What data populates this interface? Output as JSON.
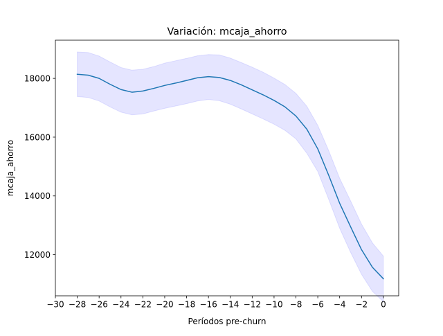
{
  "chart_data": {
    "type": "line",
    "title": "Variación: mcaja_ahorro",
    "xlabel": "Períodos pre-churn",
    "ylabel": "mcaja_ahorro",
    "xlim": [
      -30,
      1.4
    ],
    "ylim": [
      10600,
      19300
    ],
    "x_ticks": [
      -30,
      -28,
      -26,
      -24,
      -22,
      -20,
      -18,
      -16,
      -14,
      -12,
      -10,
      -8,
      -6,
      -4,
      -2,
      0
    ],
    "x_tick_labels": [
      "−30",
      "−28",
      "−26",
      "−24",
      "−22",
      "−20",
      "−18",
      "−16",
      "−14",
      "−12",
      "−10",
      "−8",
      "−6",
      "−4",
      "−2",
      "0"
    ],
    "y_ticks": [
      12000,
      14000,
      16000,
      18000
    ],
    "y_tick_labels": [
      "12000",
      "14000",
      "16000",
      "18000"
    ],
    "grid": false,
    "series": [
      {
        "color": "#1f77b4",
        "band_color": "#0000ff",
        "x": [
          -28,
          -27,
          -26,
          -25,
          -24,
          -23,
          -22,
          -21,
          -20,
          -19,
          -18,
          -17,
          -16,
          -15,
          -14,
          -13,
          -12,
          -11,
          -10,
          -9,
          -8,
          -7,
          -6,
          -5,
          -4,
          -3,
          -2,
          -1,
          0
        ],
        "values": [
          18140,
          18110,
          18000,
          17800,
          17620,
          17530,
          17570,
          17660,
          17760,
          17840,
          17930,
          18020,
          18060,
          18030,
          17930,
          17780,
          17610,
          17440,
          17250,
          17030,
          16720,
          16270,
          15600,
          14700,
          13750,
          12950,
          12170,
          11570,
          11180
        ],
        "upper": [
          18900,
          18880,
          18760,
          18560,
          18370,
          18280,
          18310,
          18400,
          18520,
          18600,
          18680,
          18770,
          18810,
          18800,
          18690,
          18540,
          18380,
          18210,
          18010,
          17790,
          17490,
          17050,
          16400,
          15540,
          14600,
          13830,
          13040,
          12400,
          11950
        ],
        "lower": [
          17380,
          17350,
          17230,
          17030,
          16850,
          16760,
          16790,
          16890,
          16980,
          17060,
          17140,
          17230,
          17280,
          17240,
          17120,
          16960,
          16790,
          16620,
          16440,
          16230,
          15940,
          15450,
          14830,
          13880,
          12900,
          12080,
          11330,
          10750,
          10400
        ]
      }
    ]
  }
}
